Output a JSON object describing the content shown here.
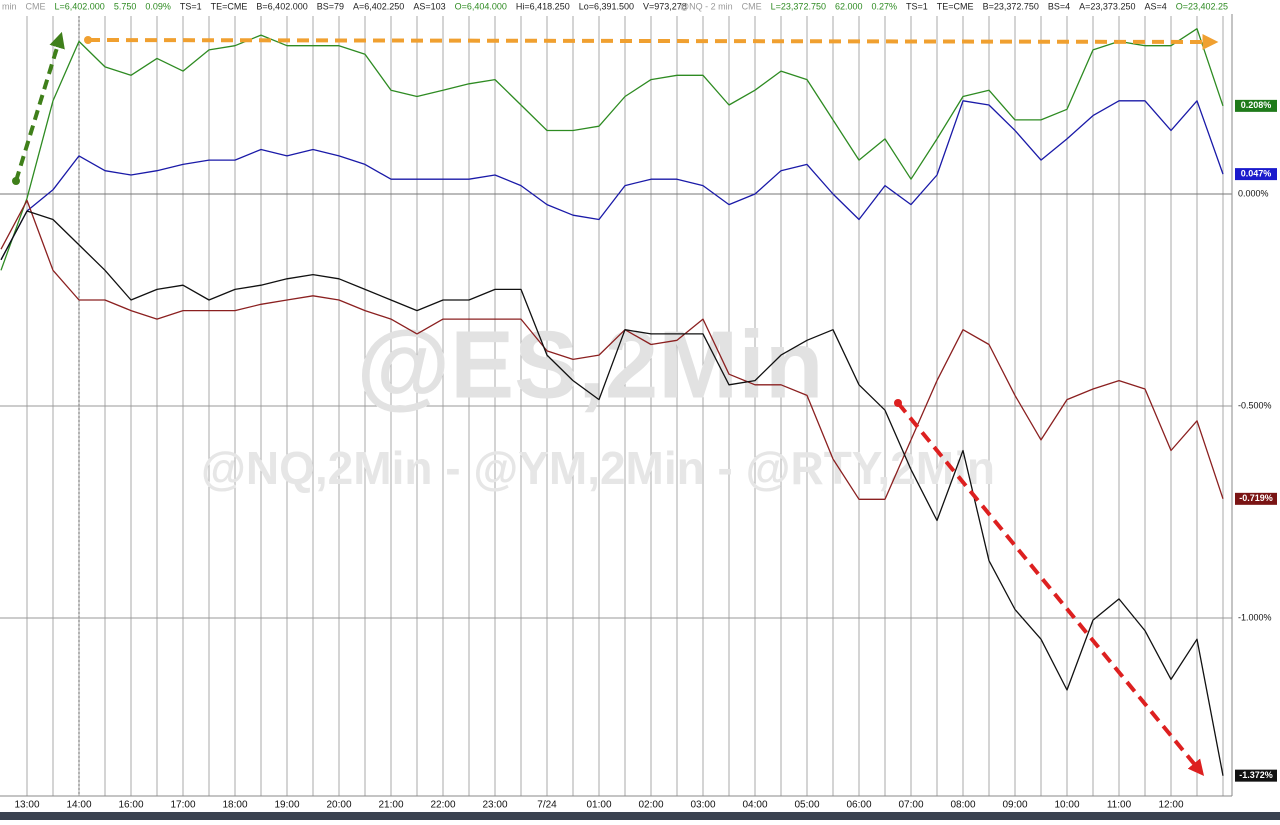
{
  "chart_data": {
    "type": "line",
    "header": [
      {
        "text": "min",
        "color": "#9a9a9a"
      },
      {
        "text": "CME",
        "color": "#9a9a9a"
      },
      {
        "text": "L=6,402.000",
        "color": "#2e8b22"
      },
      {
        "text": "5.750",
        "color": "#2e8b22"
      },
      {
        "text": "0.09%",
        "color": "#2e8b22"
      },
      {
        "text": "TS=1",
        "color": "#222"
      },
      {
        "text": "TE=CME",
        "color": "#222"
      },
      {
        "text": "B=6,402.000",
        "color": "#222"
      },
      {
        "text": "BS=79",
        "color": "#222"
      },
      {
        "text": "A=6,402.250",
        "color": "#222"
      },
      {
        "text": "AS=103",
        "color": "#222"
      },
      {
        "text": "O=6,404.000",
        "color": "#2e8b22"
      },
      {
        "text": "Hi=6,418.250",
        "color": "#222"
      },
      {
        "text": "Lo=6,391.500",
        "color": "#222"
      },
      {
        "text": "V=973,278",
        "color": "#222"
      },
      {
        "text": "@NQ - 2 min",
        "color": "#9a9a9a"
      },
      {
        "text": "CME",
        "color": "#9a9a9a"
      },
      {
        "text": "L=23,372.750",
        "color": "#2e8b22"
      },
      {
        "text": "62.000",
        "color": "#2e8b22"
      },
      {
        "text": "0.27%",
        "color": "#2e8b22"
      },
      {
        "text": "TS=1",
        "color": "#222"
      },
      {
        "text": "TE=CME",
        "color": "#222"
      },
      {
        "text": "B=23,372.750",
        "color": "#222"
      },
      {
        "text": "BS=4",
        "color": "#222"
      },
      {
        "text": "A=23,373.250",
        "color": "#222"
      },
      {
        "text": "AS=4",
        "color": "#222"
      },
      {
        "text": "O=23,402.25",
        "color": "#2e8b22"
      }
    ],
    "watermark": [
      "@ES,2Min",
      "@NQ,2Min - @YM,2Min - @RTY,2Min"
    ],
    "categories": [
      null,
      "13:00",
      null,
      "14:00",
      null,
      "16:00",
      null,
      "17:00",
      null,
      "18:00",
      null,
      "19:00",
      null,
      "20:00",
      null,
      "21:00",
      null,
      "22:00",
      null,
      "23:00",
      null,
      "7/24",
      null,
      "01:00",
      null,
      "02:00",
      null,
      "03:00",
      null,
      "04:00",
      null,
      "05:00",
      null,
      "06:00",
      null,
      "07:00",
      null,
      "08:00",
      null,
      "09:00",
      null,
      "10:00",
      null,
      "11:00",
      null,
      "12:00",
      null,
      null
    ],
    "ylim": [
      -1.42,
      0.42
    ],
    "yticks": [
      {
        "value": 0,
        "label": "0.000%"
      },
      {
        "value": -0.5,
        "label": "-0.500%"
      },
      {
        "value": -1,
        "label": "-1.000%"
      }
    ],
    "grid": true,
    "series": [
      {
        "color": "#2e8b22",
        "tag_color": "#1f7a1a",
        "values": [
          -0.18,
          -0.01,
          0.22,
          0.36,
          0.3,
          0.28,
          0.32,
          0.29,
          0.34,
          0.35,
          0.375,
          0.35,
          0.35,
          0.35,
          0.33,
          0.245,
          0.23,
          0.245,
          0.26,
          0.27,
          0.21,
          0.15,
          0.15,
          0.16,
          0.23,
          0.27,
          0.28,
          0.28,
          0.21,
          0.245,
          0.29,
          0.27,
          0.175,
          0.08,
          0.13,
          0.035,
          0.13,
          0.23,
          0.245,
          0.175,
          0.175,
          0.2,
          0.34,
          0.36,
          0.35,
          0.35,
          0.39,
          0.208
        ],
        "value_labels": [
          null,
          null,
          null,
          null,
          null,
          null,
          null,
          null,
          null,
          null,
          null,
          null,
          null,
          null,
          null,
          null,
          null,
          null,
          null,
          null,
          null,
          null,
          null,
          null,
          null,
          null,
          null,
          null,
          null,
          null,
          null,
          null,
          null,
          null,
          null,
          null,
          null,
          null,
          null,
          null,
          null,
          null,
          null,
          null,
          null,
          null,
          null,
          "0.208%"
        ]
      },
      {
        "color": "#1a1aa8",
        "tag_color": "#1a1acc",
        "values": [
          -0.155,
          -0.04,
          0.01,
          0.09,
          0.055,
          0.045,
          0.055,
          0.07,
          0.08,
          0.08,
          0.105,
          0.09,
          0.105,
          0.09,
          0.07,
          0.035,
          0.035,
          0.035,
          0.035,
          0.045,
          0.02,
          -0.025,
          -0.05,
          -0.06,
          0.02,
          0.035,
          0.035,
          0.02,
          -0.025,
          0,
          0.055,
          0.07,
          0,
          -0.06,
          0.02,
          -0.025,
          0.045,
          0.22,
          0.21,
          0.15,
          0.08,
          0.13,
          0.185,
          0.22,
          0.22,
          0.15,
          0.22,
          0.047
        ],
        "value_labels": [
          null,
          null,
          null,
          null,
          null,
          null,
          null,
          null,
          null,
          null,
          null,
          null,
          null,
          null,
          null,
          null,
          null,
          null,
          null,
          null,
          null,
          null,
          null,
          null,
          null,
          null,
          null,
          null,
          null,
          null,
          null,
          null,
          null,
          null,
          null,
          null,
          null,
          null,
          null,
          null,
          null,
          null,
          null,
          null,
          null,
          null,
          null,
          "0.047%"
        ]
      },
      {
        "color": "#8b2020",
        "tag_color": "#7a1414",
        "values": [
          -0.13,
          -0.015,
          -0.18,
          -0.25,
          -0.25,
          -0.275,
          -0.295,
          -0.275,
          -0.275,
          -0.275,
          -0.26,
          -0.25,
          -0.24,
          -0.25,
          -0.275,
          -0.295,
          -0.33,
          -0.295,
          -0.295,
          -0.295,
          -0.295,
          -0.37,
          -0.39,
          -0.38,
          -0.32,
          -0.355,
          -0.345,
          -0.295,
          -0.425,
          -0.45,
          -0.45,
          -0.475,
          -0.625,
          -0.72,
          -0.72,
          -0.58,
          -0.44,
          -0.32,
          -0.355,
          -0.475,
          -0.58,
          -0.485,
          -0.46,
          -0.44,
          -0.46,
          -0.605,
          -0.535,
          -0.719
        ],
        "value_labels": [
          null,
          null,
          null,
          null,
          null,
          null,
          null,
          null,
          null,
          null,
          null,
          null,
          null,
          null,
          null,
          null,
          null,
          null,
          null,
          null,
          null,
          null,
          null,
          null,
          null,
          null,
          null,
          null,
          null,
          null,
          null,
          null,
          null,
          null,
          null,
          null,
          null,
          null,
          null,
          null,
          null,
          null,
          null,
          null,
          null,
          null,
          null,
          "-0.719%"
        ]
      },
      {
        "color": "#111111",
        "tag_color": "#111111",
        "values": [
          -0.155,
          -0.04,
          -0.06,
          -0.12,
          -0.18,
          -0.25,
          -0.225,
          -0.215,
          -0.25,
          -0.225,
          -0.215,
          -0.2,
          -0.19,
          -0.2,
          -0.225,
          -0.25,
          -0.275,
          -0.25,
          -0.25,
          -0.225,
          -0.225,
          -0.38,
          -0.44,
          -0.485,
          -0.32,
          -0.33,
          -0.33,
          -0.33,
          -0.45,
          -0.44,
          -0.38,
          -0.345,
          -0.32,
          -0.45,
          -0.51,
          -0.65,
          -0.77,
          -0.605,
          -0.865,
          -0.98,
          -1.05,
          -1.17,
          -1.005,
          -0.955,
          -1.03,
          -1.145,
          -1.05,
          -1.372
        ],
        "value_labels": [
          null,
          null,
          null,
          null,
          null,
          null,
          null,
          null,
          null,
          null,
          null,
          null,
          null,
          null,
          null,
          null,
          null,
          null,
          null,
          null,
          null,
          null,
          null,
          null,
          null,
          null,
          null,
          null,
          null,
          null,
          null,
          null,
          null,
          null,
          null,
          null,
          null,
          null,
          null,
          null,
          null,
          null,
          null,
          null,
          null,
          null,
          null,
          "-1.372%"
        ]
      }
    ]
  }
}
